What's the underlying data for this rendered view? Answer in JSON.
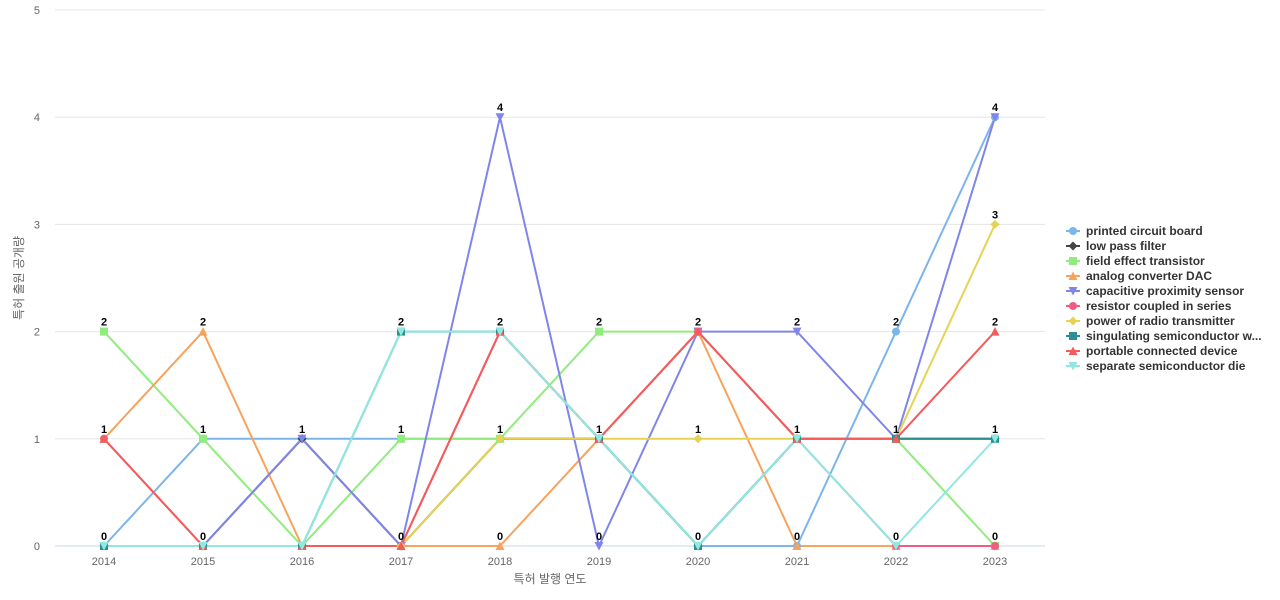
{
  "chart_data": {
    "type": "line",
    "xlabel": "특허 발행 연도",
    "ylabel": "특허 출원 공개량",
    "ylim": [
      0,
      5
    ],
    "yticks": [
      "0",
      "1",
      "2",
      "3",
      "4",
      "5"
    ],
    "categories": [
      "2014",
      "2015",
      "2016",
      "2017",
      "2018",
      "2019",
      "2020",
      "2021",
      "2022",
      "2023"
    ],
    "grid": true,
    "legend_position": "right",
    "series": [
      {
        "name": "printed circuit board",
        "color": "#7cb5ec",
        "marker": "circle",
        "values": [
          0,
          1,
          1,
          1,
          1,
          1,
          0,
          0,
          2,
          4
        ]
      },
      {
        "name": "low pass filter",
        "color": "#434348",
        "marker": "diamond",
        "values": [
          0,
          0,
          1,
          0,
          1,
          1,
          0,
          1,
          1,
          1
        ]
      },
      {
        "name": "field effect transistor",
        "color": "#90ed7d",
        "marker": "square",
        "values": [
          2,
          1,
          0,
          1,
          1,
          2,
          2,
          1,
          1,
          0
        ]
      },
      {
        "name": "analog converter DAC",
        "color": "#f7a35c",
        "marker": "triangle",
        "values": [
          1,
          2,
          0,
          0,
          0,
          1,
          2,
          0,
          0,
          0
        ]
      },
      {
        "name": "capacitive proximity sensor",
        "color": "#8085e9",
        "marker": "triangle-down",
        "values": [
          0,
          0,
          1,
          0,
          4,
          0,
          2,
          2,
          1,
          4
        ]
      },
      {
        "name": "resistor coupled in series",
        "color": "#f15c80",
        "marker": "circle",
        "values": [
          1,
          0,
          0,
          0,
          2,
          1,
          2,
          1,
          0,
          0
        ]
      },
      {
        "name": "power of radio transmitter",
        "color": "#e4d354",
        "marker": "diamond",
        "values": [
          0,
          0,
          0,
          0,
          1,
          1,
          1,
          1,
          1,
          3
        ]
      },
      {
        "name": "singulating semiconductor w...",
        "color": "#2b908f",
        "marker": "square",
        "values": [
          0,
          0,
          0,
          2,
          2,
          1,
          0,
          1,
          1,
          1
        ]
      },
      {
        "name": "portable connected device",
        "color": "#f45b5b",
        "marker": "triangle",
        "values": [
          1,
          0,
          0,
          0,
          2,
          1,
          2,
          1,
          1,
          2
        ]
      },
      {
        "name": "separate semiconductor die",
        "color": "#91e8e1",
        "marker": "triangle-down",
        "values": [
          0,
          0,
          0,
          2,
          2,
          1,
          0,
          1,
          0,
          1
        ]
      }
    ],
    "data_labels": [
      [
        {
          "value": "0",
          "series": 0
        },
        {
          "value": "1",
          "series": 3
        },
        {
          "value": "2",
          "series": 2
        }
      ],
      [
        {
          "value": "0",
          "series": 4
        },
        {
          "value": "1",
          "series": 0
        },
        {
          "value": "2",
          "series": 3
        }
      ],
      [
        {
          "value": "1",
          "series": 0
        }
      ],
      [
        {
          "value": "0",
          "series": 4
        },
        {
          "value": "1",
          "series": 0
        },
        {
          "value": "2",
          "series": 7
        }
      ],
      [
        {
          "value": "0",
          "series": 3
        },
        {
          "value": "1",
          "series": 0
        },
        {
          "value": "2",
          "series": 7
        },
        {
          "value": "4",
          "series": 4
        }
      ],
      [
        {
          "value": "0",
          "series": 4
        },
        {
          "value": "1",
          "series": 0
        },
        {
          "value": "2",
          "series": 2
        }
      ],
      [
        {
          "value": "0",
          "series": 0
        },
        {
          "value": "1",
          "series": 6
        },
        {
          "value": "2",
          "series": 2
        }
      ],
      [
        {
          "value": "0",
          "series": 0
        },
        {
          "value": "1",
          "series": 6
        },
        {
          "value": "2",
          "series": 4
        }
      ],
      [
        {
          "value": "0",
          "series": 5
        },
        {
          "value": "1",
          "series": 4
        },
        {
          "value": "2",
          "series": 0
        }
      ],
      [
        {
          "value": "0",
          "series": 2
        },
        {
          "value": "1",
          "series": 1
        },
        {
          "value": "2",
          "series": 8
        },
        {
          "value": "3",
          "series": 6
        },
        {
          "value": "4",
          "series": 0
        }
      ]
    ]
  }
}
